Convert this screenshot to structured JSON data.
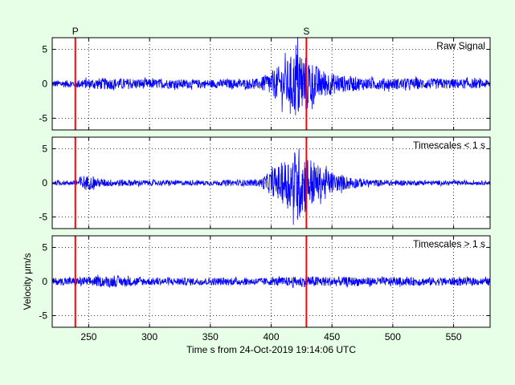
{
  "chart_data": [
    {
      "type": "line",
      "annotation": "Raw Signal",
      "xlim": [
        220,
        580
      ],
      "ylim": [
        -6.7,
        6.7
      ],
      "x_ticks": [
        250,
        300,
        350,
        400,
        450,
        500,
        550
      ],
      "y_ticks": [
        5,
        0,
        -5
      ],
      "grid": "on",
      "series": [
        {
          "color": "#0000ff",
          "x_range": [
            220,
            580
          ],
          "envelope": {
            "x": [
              220,
              235,
              260,
              300,
              350,
              390,
              405,
              415,
              422,
              430,
              440,
              455,
              480,
              520,
              560,
              580
            ],
            "amplitude": [
              0.5,
              0.55,
              0.85,
              0.7,
              0.6,
              0.75,
              2.4,
              3.8,
              5.5,
              4.0,
              2.2,
              1.3,
              0.85,
              0.8,
              0.7,
              0.6
            ]
          }
        }
      ],
      "markers": [
        {
          "label": "P",
          "x": 239,
          "color": "#ff0000"
        },
        {
          "label": "S",
          "x": 429,
          "color": "#ff0000"
        }
      ]
    },
    {
      "type": "line",
      "annotation": "Timescales < 1 s",
      "xlim": [
        220,
        580
      ],
      "ylim": [
        -6.7,
        6.7
      ],
      "x_ticks": [
        250,
        300,
        350,
        400,
        450,
        500,
        550
      ],
      "y_ticks": [
        5,
        0,
        -5
      ],
      "grid": "on",
      "series": [
        {
          "color": "#0000ff",
          "x_range": [
            220,
            580
          ],
          "envelope": {
            "x": [
              220,
              238,
              245,
              260,
              300,
              350,
              390,
              405,
              415,
              422,
              430,
              440,
              455,
              480,
              520,
              560,
              580
            ],
            "amplitude": [
              0.3,
              0.35,
              1.2,
              0.6,
              0.4,
              0.35,
              0.5,
              2.4,
              4.0,
              5.5,
              4.2,
              2.4,
              1.2,
              0.5,
              0.35,
              0.3,
              0.3
            ]
          }
        }
      ],
      "markers": [
        {
          "x": 239,
          "color": "#ff0000"
        },
        {
          "x": 429,
          "color": "#ff0000"
        }
      ]
    },
    {
      "type": "line",
      "annotation": "Timescales > 1 s",
      "xlim": [
        220,
        580
      ],
      "ylim": [
        -6.7,
        6.7
      ],
      "x_ticks": [
        250,
        300,
        350,
        400,
        450,
        500,
        550
      ],
      "x_tick_labels": [
        "250",
        "300",
        "350",
        "400",
        "450",
        "500",
        "550"
      ],
      "y_ticks": [
        5,
        0,
        -5
      ],
      "grid": "on",
      "ylabel": "Velocity μm/s",
      "xlabel": "Time s from 24-Oct-2019 19:14:06 UTC",
      "series": [
        {
          "color": "#0000ff",
          "x_range": [
            220,
            580
          ],
          "envelope": {
            "x": [
              220,
              270,
              300,
              400,
              430,
              450,
              500,
              550,
              580
            ],
            "amplitude": [
              0.5,
              0.8,
              0.55,
              0.55,
              0.8,
              0.7,
              0.6,
              0.6,
              0.5
            ]
          }
        }
      ],
      "markers": [
        {
          "x": 239,
          "color": "#ff0000"
        },
        {
          "x": 429,
          "color": "#ff0000"
        }
      ]
    }
  ]
}
